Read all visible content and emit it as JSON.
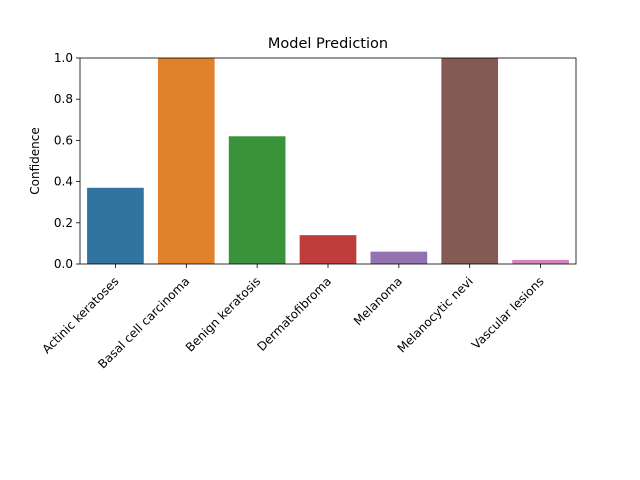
{
  "chart_data": {
    "type": "bar",
    "title": "Model Prediction",
    "xlabel": "",
    "ylabel": "Confidence",
    "ylim": [
      0,
      1.0
    ],
    "yticks": [
      "0.0",
      "0.2",
      "0.4",
      "0.6",
      "0.8",
      "1.0"
    ],
    "grid": false,
    "categories": [
      "Actinic keratoses",
      "Basal cell carcinoma",
      "Benign keratosis",
      "Dermatofibroma",
      "Melanoma",
      "Melanocytic nevi",
      "Vascular lesions"
    ],
    "values": [
      0.37,
      1.0,
      0.62,
      0.14,
      0.06,
      1.0,
      0.02
    ],
    "colors": [
      "#3274a1",
      "#e1812c",
      "#3a923a",
      "#c03d3e",
      "#9372b2",
      "#845b53",
      "#d684bd"
    ]
  }
}
